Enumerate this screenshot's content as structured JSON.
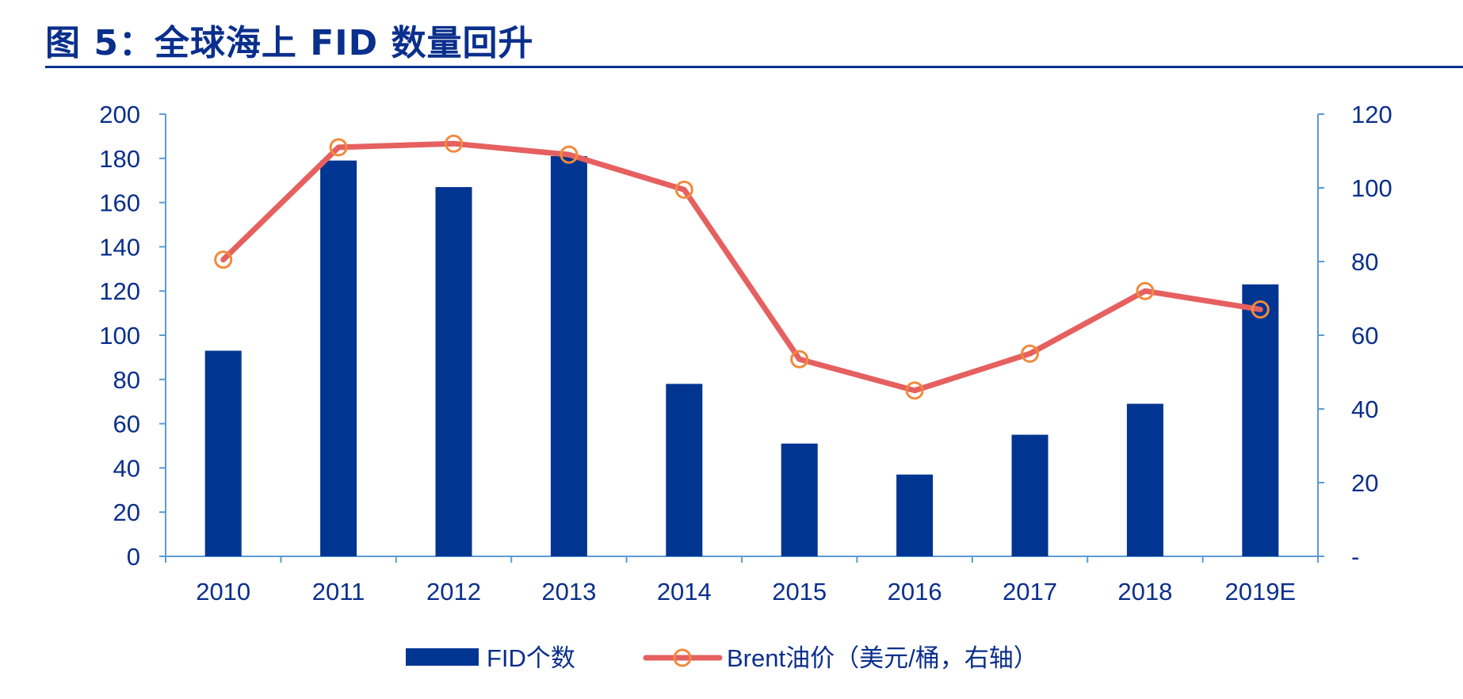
{
  "title": "图 5：全球海上 FID 数量回升",
  "chart_data": {
    "type": "bar+line",
    "categories": [
      "2010",
      "2011",
      "2012",
      "2013",
      "2014",
      "2015",
      "2016",
      "2017",
      "2018",
      "2019E"
    ],
    "series": [
      {
        "name": "FID个数",
        "type": "bar",
        "axis": "left",
        "color": "#003591",
        "values": [
          93,
          179,
          167,
          181,
          78,
          51,
          37,
          55,
          69,
          123
        ]
      },
      {
        "name": "Brent油价（美元/桶，右轴）",
        "type": "line",
        "axis": "right",
        "color": "#e66060",
        "marker_color": "#f08a3c",
        "values": [
          80.5,
          111,
          112,
          109,
          99.5,
          53.5,
          45,
          55,
          72,
          67
        ]
      }
    ],
    "y_left": {
      "ylim": [
        0,
        200
      ],
      "ticks": [
        "0",
        "20",
        "40",
        "60",
        "80",
        "100",
        "120",
        "140",
        "160",
        "180",
        "200"
      ]
    },
    "y_right": {
      "ylim": [
        0,
        120
      ],
      "ticks": [
        "-",
        "20",
        "40",
        "60",
        "80",
        "100",
        "120"
      ]
    },
    "axis_color": "#5b9bd5",
    "tick_label_color": "#0a2f8c",
    "legend_position": "bottom-center",
    "grid": false
  }
}
